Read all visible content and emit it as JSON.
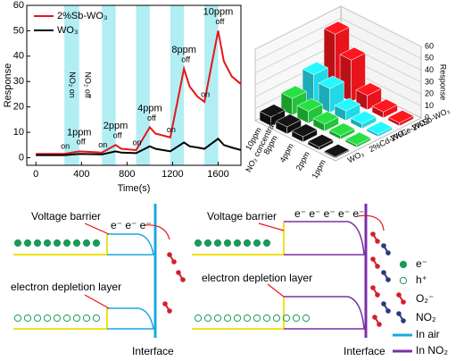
{
  "chart_data": [
    {
      "type": "line",
      "xlabel": "Time(s)",
      "ylabel": "Response",
      "xlim": [
        -80,
        1800
      ],
      "xticks": [
        0,
        400,
        800,
        1200,
        1600
      ],
      "ylim": [
        -3,
        60
      ],
      "yticks": [
        0,
        10,
        20,
        30,
        40,
        50,
        60
      ],
      "legend": "upper left",
      "x": [
        0,
        250,
        380,
        580,
        700,
        750,
        880,
        1000,
        1050,
        1180,
        1300,
        1350,
        1420,
        1480,
        1600,
        1650,
        1720,
        1800
      ],
      "series": [
        {
          "name": "2%Sb-WO₃",
          "color": "#e8141b",
          "values": [
            1.5,
            1.5,
            2.5,
            2,
            5,
            3.5,
            3,
            12,
            9.5,
            8,
            35,
            28,
            24,
            22,
            50,
            38,
            32,
            29
          ]
        },
        {
          "name": "WO₃",
          "color": "#000000",
          "values": [
            1,
            1,
            1.5,
            1.3,
            2.5,
            2,
            1.8,
            4.5,
            3.5,
            2.5,
            6,
            4.5,
            4,
            3.5,
            7.5,
            5,
            4,
            3
          ]
        }
      ],
      "band_color": "#b0eef4",
      "exposure_note": {
        "on": "NO₂ on",
        "off": "NO₂ off"
      },
      "exposures": [
        {
          "range": [
            250,
            380
          ],
          "label": "1ppm",
          "on": "on",
          "off": "off"
        },
        {
          "range": [
            580,
            700
          ],
          "label": "2ppm",
          "on": "on",
          "off": "off"
        },
        {
          "range": [
            880,
            1000
          ],
          "label": "4ppm",
          "on": "on",
          "off": "off"
        },
        {
          "range": [
            1180,
            1300
          ],
          "label": "8ppm",
          "on": "on",
          "off": "off"
        },
        {
          "range": [
            1480,
            1600
          ],
          "label": "10ppm",
          "on": "on",
          "off": "off"
        }
      ]
    },
    {
      "type": "bar3d",
      "xlabel": "NO₂ concentration",
      "zlabel": "Response",
      "categories": [
        "10ppm",
        "8ppm",
        "4ppm",
        "2ppm",
        "1ppm"
      ],
      "zlim": [
        0,
        60
      ],
      "zticks": [
        0,
        10,
        20,
        30,
        40,
        50,
        60
      ],
      "series": [
        {
          "name": "WO₃",
          "color": "#111111",
          "values": [
            7.5,
            6,
            4.5,
            2.5,
            1
          ]
        },
        {
          "name": "2%Cd-WO₃",
          "color": "#22c43a",
          "values": [
            14,
            10,
            6,
            3,
            2
          ]
        },
        {
          "name": "2%Ce-WO₃",
          "color": "#20d8e6",
          "values": [
            25,
            20,
            8,
            4,
            2
          ]
        },
        {
          "name": "2%Sb-WO₃",
          "color": "#e8141b",
          "values": [
            50,
            35,
            12,
            5,
            2.5
          ]
        }
      ]
    }
  ],
  "diagram": {
    "left": {
      "barrier_label": "Voltage barrier",
      "electrons": "e⁻ e⁻ e⁻",
      "depletion_label": "electron depletion layer",
      "interface_label": "Interface"
    },
    "right": {
      "barrier_label": "Voltage barrier",
      "electrons": "e⁻ e⁻ e⁻ e⁻ e⁻",
      "depletion_label": "electron depletion layer",
      "interface_label": "Interface"
    },
    "legend": [
      "e⁻",
      "h⁺",
      "O₂⁻",
      "NO₂",
      "In air",
      "In NO₂"
    ]
  }
}
